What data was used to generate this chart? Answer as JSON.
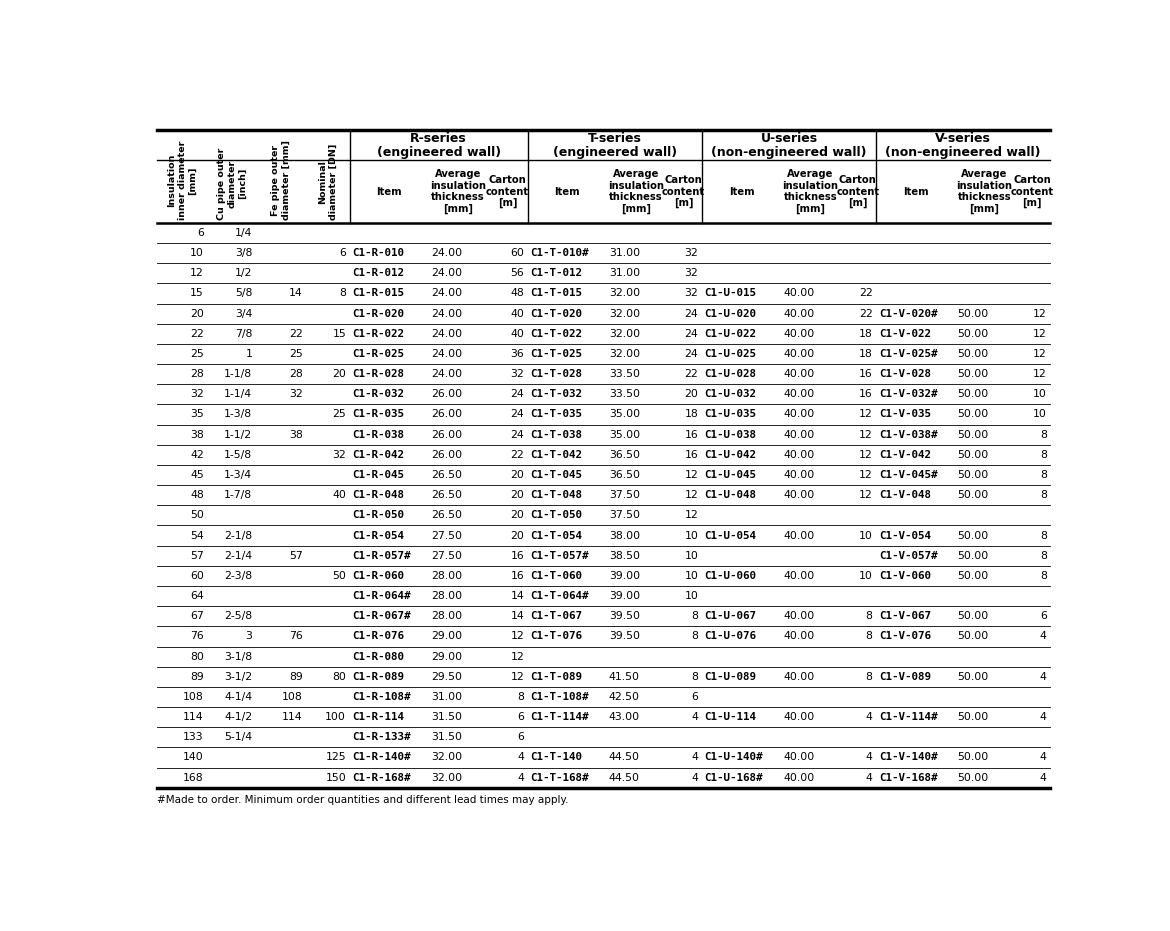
{
  "footnote": "#Made to order. Minimum order quantities and different lead times may apply.",
  "bg_color": "#ffffff",
  "text_color": "#000000",
  "rows": [
    [
      "6",
      "1/4",
      "",
      "",
      "",
      "",
      "",
      "",
      "",
      "",
      "",
      "",
      "",
      "",
      "",
      ""
    ],
    [
      "10",
      "3/8",
      "",
      "6",
      "C1-R-010",
      "24.00",
      "60",
      "C1-T-010#",
      "31.00",
      "32",
      "",
      "",
      "",
      "",
      "",
      ""
    ],
    [
      "12",
      "1/2",
      "",
      "",
      "C1-R-012",
      "24.00",
      "56",
      "C1-T-012",
      "31.00",
      "32",
      "",
      "",
      "",
      "",
      "",
      ""
    ],
    [
      "15",
      "5/8",
      "14",
      "8",
      "C1-R-015",
      "24.00",
      "48",
      "C1-T-015",
      "32.00",
      "32",
      "C1-U-015",
      "40.00",
      "22",
      "",
      "",
      ""
    ],
    [
      "20",
      "3/4",
      "",
      "",
      "C1-R-020",
      "24.00",
      "40",
      "C1-T-020",
      "32.00",
      "24",
      "C1-U-020",
      "40.00",
      "22",
      "C1-V-020#",
      "50.00",
      "12"
    ],
    [
      "22",
      "7/8",
      "22",
      "15",
      "C1-R-022",
      "24.00",
      "40",
      "C1-T-022",
      "32.00",
      "24",
      "C1-U-022",
      "40.00",
      "18",
      "C1-V-022",
      "50.00",
      "12"
    ],
    [
      "25",
      "1",
      "25",
      "",
      "C1-R-025",
      "24.00",
      "36",
      "C1-T-025",
      "32.00",
      "24",
      "C1-U-025",
      "40.00",
      "18",
      "C1-V-025#",
      "50.00",
      "12"
    ],
    [
      "28",
      "1-1/8",
      "28",
      "20",
      "C1-R-028",
      "24.00",
      "32",
      "C1-T-028",
      "33.50",
      "22",
      "C1-U-028",
      "40.00",
      "16",
      "C1-V-028",
      "50.00",
      "12"
    ],
    [
      "32",
      "1-1/4",
      "32",
      "",
      "C1-R-032",
      "26.00",
      "24",
      "C1-T-032",
      "33.50",
      "20",
      "C1-U-032",
      "40.00",
      "16",
      "C1-V-032#",
      "50.00",
      "10"
    ],
    [
      "35",
      "1-3/8",
      "",
      "25",
      "C1-R-035",
      "26.00",
      "24",
      "C1-T-035",
      "35.00",
      "18",
      "C1-U-035",
      "40.00",
      "12",
      "C1-V-035",
      "50.00",
      "10"
    ],
    [
      "38",
      "1-1/2",
      "38",
      "",
      "C1-R-038",
      "26.00",
      "24",
      "C1-T-038",
      "35.00",
      "16",
      "C1-U-038",
      "40.00",
      "12",
      "C1-V-038#",
      "50.00",
      "8"
    ],
    [
      "42",
      "1-5/8",
      "",
      "32",
      "C1-R-042",
      "26.00",
      "22",
      "C1-T-042",
      "36.50",
      "16",
      "C1-U-042",
      "40.00",
      "12",
      "C1-V-042",
      "50.00",
      "8"
    ],
    [
      "45",
      "1-3/4",
      "",
      "",
      "C1-R-045",
      "26.50",
      "20",
      "C1-T-045",
      "36.50",
      "12",
      "C1-U-045",
      "40.00",
      "12",
      "C1-V-045#",
      "50.00",
      "8"
    ],
    [
      "48",
      "1-7/8",
      "",
      "40",
      "C1-R-048",
      "26.50",
      "20",
      "C1-T-048",
      "37.50",
      "12",
      "C1-U-048",
      "40.00",
      "12",
      "C1-V-048",
      "50.00",
      "8"
    ],
    [
      "50",
      "",
      "",
      "",
      "C1-R-050",
      "26.50",
      "20",
      "C1-T-050",
      "37.50",
      "12",
      "",
      "",
      "",
      "",
      "",
      ""
    ],
    [
      "54",
      "2-1/8",
      "",
      "",
      "C1-R-054",
      "27.50",
      "20",
      "C1-T-054",
      "38.00",
      "10",
      "C1-U-054",
      "40.00",
      "10",
      "C1-V-054",
      "50.00",
      "8"
    ],
    [
      "57",
      "2-1/4",
      "57",
      "",
      "C1-R-057#",
      "27.50",
      "16",
      "C1-T-057#",
      "38.50",
      "10",
      "",
      "",
      "",
      "C1-V-057#",
      "50.00",
      "8"
    ],
    [
      "60",
      "2-3/8",
      "",
      "50",
      "C1-R-060",
      "28.00",
      "16",
      "C1-T-060",
      "39.00",
      "10",
      "C1-U-060",
      "40.00",
      "10",
      "C1-V-060",
      "50.00",
      "8"
    ],
    [
      "64",
      "",
      "",
      "",
      "C1-R-064#",
      "28.00",
      "14",
      "C1-T-064#",
      "39.00",
      "10",
      "",
      "",
      "",
      "",
      "",
      ""
    ],
    [
      "67",
      "2-5/8",
      "",
      "",
      "C1-R-067#",
      "28.00",
      "14",
      "C1-T-067",
      "39.50",
      "8",
      "C1-U-067",
      "40.00",
      "8",
      "C1-V-067",
      "50.00",
      "6"
    ],
    [
      "76",
      "3",
      "76",
      "",
      "C1-R-076",
      "29.00",
      "12",
      "C1-T-076",
      "39.50",
      "8",
      "C1-U-076",
      "40.00",
      "8",
      "C1-V-076",
      "50.00",
      "4"
    ],
    [
      "80",
      "3-1/8",
      "",
      "",
      "C1-R-080",
      "29.00",
      "12",
      "",
      "",
      "",
      "",
      "",
      "",
      "",
      "",
      ""
    ],
    [
      "89",
      "3-1/2",
      "89",
      "80",
      "C1-R-089",
      "29.50",
      "12",
      "C1-T-089",
      "41.50",
      "8",
      "C1-U-089",
      "40.00",
      "8",
      "C1-V-089",
      "50.00",
      "4"
    ],
    [
      "108",
      "4-1/4",
      "108",
      "",
      "C1-R-108#",
      "31.00",
      "8",
      "C1-T-108#",
      "42.50",
      "6",
      "",
      "",
      "",
      "",
      "",
      ""
    ],
    [
      "114",
      "4-1/2",
      "114",
      "100",
      "C1-R-114",
      "31.50",
      "6",
      "C1-T-114#",
      "43.00",
      "4",
      "C1-U-114",
      "40.00",
      "4",
      "C1-V-114#",
      "50.00",
      "4"
    ],
    [
      "133",
      "5-1/4",
      "",
      "",
      "C1-R-133#",
      "31.50",
      "6",
      "",
      "",
      "",
      "",
      "",
      "",
      "",
      "",
      ""
    ],
    [
      "140",
      "",
      "",
      "125",
      "C1-R-140#",
      "32.00",
      "4",
      "C1-T-140",
      "44.50",
      "4",
      "C1-U-140#",
      "40.00",
      "4",
      "C1-V-140#",
      "50.00",
      "4"
    ],
    [
      "168",
      "",
      "",
      "150",
      "C1-R-168#",
      "32.00",
      "4",
      "C1-T-168#",
      "44.50",
      "4",
      "C1-U-168#",
      "40.00",
      "4",
      "C1-V-168#",
      "50.00",
      "4"
    ]
  ],
  "col_widths_rel": [
    5.2,
    5.0,
    5.2,
    4.5,
    8.2,
    6.0,
    4.2,
    8.2,
    6.0,
    3.8,
    8.2,
    6.0,
    3.8,
    8.2,
    6.0,
    3.8
  ],
  "group_labels": [
    "R-series\n(engineered wall)",
    "T-series\n(engineered wall)",
    "U-series\n(non-engineered wall)",
    "V-series\n(non-engineered wall)"
  ],
  "group_col_starts": [
    4,
    7,
    10,
    13
  ],
  "sub_headers": [
    "Insulation\ninner diameter\n[mm]",
    "Cu pipe outer\ndiameter\n[inch]",
    "Fe pipe outer\ndiameter [mm]",
    "Nominal\ndiameter [DN]",
    "Item",
    "Average\ninsulation\nthickness\n[mm]",
    "Carton\ncontent\n[m]",
    "Item",
    "Average\ninsulation\nthickness\n[mm]",
    "Carton\ncontent\n[m]",
    "Item",
    "Average\ninsulation\nthickness\n[mm]",
    "Carton\ncontent\n[m]",
    "Item",
    "Average\ninsulation\nthickness\n[mm]",
    "Carton\ncontent\n[m]"
  ],
  "bold_item_cols": [
    4,
    7,
    10,
    13
  ],
  "right_align_cols": [
    0,
    1,
    2,
    3,
    6,
    9,
    12,
    15
  ]
}
